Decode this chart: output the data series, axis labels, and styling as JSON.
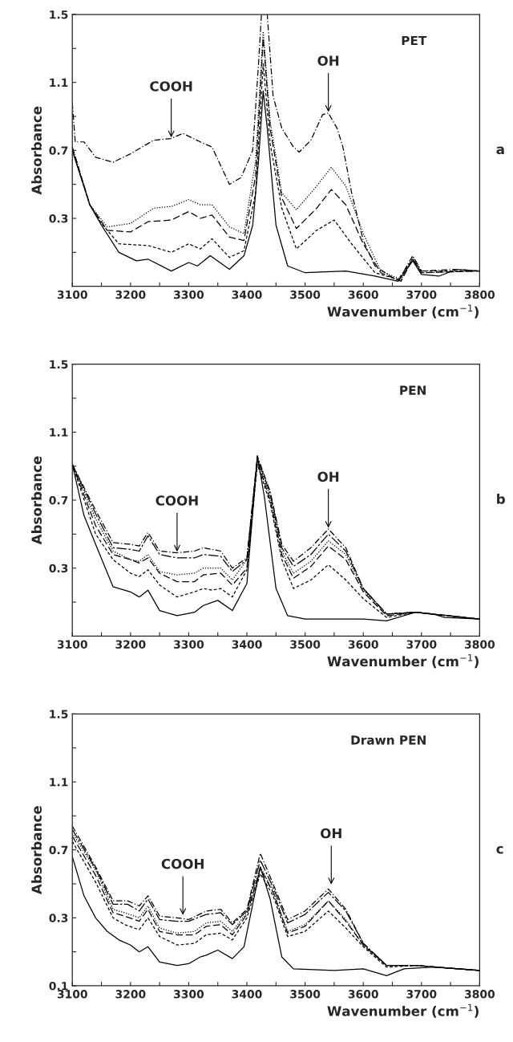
{
  "chart_data": [
    {
      "type": "line",
      "xlabel": "Wavenumber (cm$^{−1}$)",
      "ylabel": "Absorbance",
      "x": [
        3100,
        3130,
        3150,
        3180,
        3210,
        3230,
        3270,
        3300,
        3315,
        3337,
        3370,
        3395,
        3410,
        3420,
        3428,
        3435,
        3450,
        3470,
        3500,
        3570,
        3620,
        3660,
        3685,
        3700,
        3730,
        3760,
        3800
      ],
      "xlim": [
        3100,
        3800
      ],
      "xticks": [
        3100,
        {
          "value": 3150,
          "label": null
        },
        3200,
        {
          "value": 3250,
          "label": null
        },
        3300,
        {
          "value": 3350,
          "label": null
        },
        3400,
        {
          "value": 3450,
          "label": null
        },
        3500,
        {
          "value": 3550,
          "label": null
        },
        3600,
        {
          "value": 3650,
          "label": null
        },
        3700,
        {
          "value": 3750,
          "label": null
        },
        3800
      ],
      "ylim": [
        -0.1,
        1.5
      ],
      "yticks": [
        {
          "value": 0.1,
          "label": null
        },
        0.3,
        {
          "value": 0.5,
          "label": null
        },
        0.7,
        {
          "value": 0.9,
          "label": null
        },
        1.1,
        {
          "value": 1.3,
          "label": null
        },
        1.5
      ],
      "grid": false,
      "legend": false,
      "series": [
        {
          "color": "#000000",
          "line_style": "solid",
          "values": [
            0.7,
            0.38,
            0.26,
            0.1,
            0.05,
            0.06,
            -0.01,
            0.04,
            0.02,
            0.08,
            0.0,
            0.08,
            0.26,
            0.64,
            1.05,
            0.83,
            0.26,
            0.02,
            -0.02,
            -0.01,
            -0.04,
            -0.07,
            0.05,
            -0.03,
            -0.04,
            0.0,
            -0.01
          ]
        },
        {
          "x": [
            3100,
            3130,
            3150,
            3180,
            3230,
            3270,
            3300,
            3320,
            3340,
            3370,
            3395,
            3415,
            3428,
            3440,
            3460,
            3485,
            3520,
            3550,
            3580,
            3620,
            3660,
            3685,
            3700,
            3760,
            3800
          ],
          "color": "#000000",
          "line_style": "dashed",
          "values": [
            0.7,
            0.38,
            0.27,
            0.15,
            0.14,
            0.1,
            0.15,
            0.12,
            0.18,
            0.07,
            0.11,
            0.45,
            1.21,
            0.74,
            0.36,
            0.12,
            0.23,
            0.29,
            0.15,
            -0.02,
            -0.06,
            0.06,
            -0.01,
            -0.01,
            -0.01
          ]
        },
        {
          "x": [
            3100,
            3130,
            3160,
            3200,
            3230,
            3270,
            3300,
            3320,
            3340,
            3370,
            3395,
            3415,
            3428,
            3440,
            3460,
            3485,
            3520,
            3545,
            3570,
            3600,
            3630,
            3665,
            3685,
            3700,
            3800
          ],
          "color": "#000000",
          "line_style": "longdash",
          "values": [
            0.72,
            0.38,
            0.23,
            0.22,
            0.28,
            0.29,
            0.34,
            0.3,
            0.32,
            0.19,
            0.17,
            0.55,
            1.36,
            0.83,
            0.42,
            0.24,
            0.36,
            0.47,
            0.38,
            0.15,
            -0.02,
            -0.07,
            0.06,
            -0.02,
            -0.01
          ]
        },
        {
          "x": [
            3100,
            3130,
            3160,
            3200,
            3240,
            3270,
            3300,
            3320,
            3340,
            3370,
            3395,
            3415,
            3428,
            3440,
            3460,
            3485,
            3520,
            3545,
            3570,
            3600,
            3630,
            3665,
            3685,
            3700,
            3800
          ],
          "color": "#000000",
          "line_style": "dotted",
          "values": [
            0.72,
            0.38,
            0.25,
            0.27,
            0.36,
            0.37,
            0.41,
            0.38,
            0.38,
            0.25,
            0.21,
            0.64,
            1.4,
            0.87,
            0.45,
            0.35,
            0.49,
            0.6,
            0.49,
            0.21,
            -0.01,
            -0.06,
            0.07,
            -0.02,
            -0.01
          ]
        },
        {
          "x": [
            3100,
            3105,
            3120,
            3140,
            3170,
            3200,
            3240,
            3270,
            3290,
            3320,
            3340,
            3370,
            3390,
            3410,
            3420,
            3425,
            3435,
            3445,
            3460,
            3480,
            3490,
            3510,
            3530,
            3540,
            3555,
            3565,
            3580,
            3600,
            3620,
            3660,
            3685,
            3700,
            3760,
            3800
          ],
          "color": "#000000",
          "line_style": "dashdot",
          "values": [
            0.98,
            0.75,
            0.75,
            0.66,
            0.63,
            0.68,
            0.76,
            0.77,
            0.8,
            0.75,
            0.72,
            0.5,
            0.54,
            0.7,
            1.21,
            1.5,
            1.5,
            1.02,
            0.83,
            0.72,
            0.69,
            0.76,
            0.91,
            0.92,
            0.83,
            0.72,
            0.45,
            0.17,
            0.02,
            -0.07,
            0.08,
            -0.01,
            0.0,
            -0.01
          ]
        }
      ],
      "annotations": [
        "PET",
        "a",
        {
          "text": "COOH",
          "x": 3270,
          "y": 0.77
        },
        {
          "text": "OH",
          "x": 3540,
          "y": 0.92
        }
      ]
    },
    {
      "type": "line",
      "xlabel": "Wavenumber (cm$^{−1}$)",
      "ylabel": "Absorbance",
      "x": [
        3100,
        3120,
        3140,
        3170,
        3200,
        3215,
        3230,
        3250,
        3280,
        3310,
        3325,
        3350,
        3375,
        3400,
        3418,
        3430,
        3450,
        3470,
        3500,
        3560,
        3600,
        3640,
        3690,
        3720,
        3740,
        3800
      ],
      "xlim": [
        3100,
        3800
      ],
      "xticks": [
        3100,
        {
          "value": 3150,
          "label": null
        },
        3200,
        {
          "value": 3250,
          "label": null
        },
        3300,
        {
          "value": 3350,
          "label": null
        },
        3400,
        {
          "value": 3450,
          "label": null
        },
        3500,
        {
          "value": 3550,
          "label": null
        },
        3600,
        {
          "value": 3650,
          "label": null
        },
        3700,
        {
          "value": 3750,
          "label": null
        },
        3800
      ],
      "ylim": [
        -0.1,
        1.5
      ],
      "yticks": [
        {
          "value": 0.1,
          "label": null
        },
        0.3,
        {
          "value": 0.5,
          "label": null
        },
        0.7,
        {
          "value": 0.9,
          "label": null
        },
        1.1,
        {
          "value": 1.3,
          "label": null
        },
        1.5
      ],
      "grid": false,
      "legend": false,
      "series": [
        {
          "color": "#000000",
          "line_style": "solid",
          "values": [
            0.91,
            0.61,
            0.44,
            0.19,
            0.16,
            0.13,
            0.17,
            0.05,
            0.02,
            0.04,
            0.08,
            0.11,
            0.05,
            0.21,
            0.96,
            0.72,
            0.18,
            0.02,
            0.0,
            0.0,
            0.0,
            -0.01,
            0.04,
            0.03,
            0.01,
            0.0
          ]
        },
        {
          "x": [
            3100,
            3140,
            3170,
            3200,
            3215,
            3230,
            3250,
            3280,
            3310,
            3325,
            3340,
            3355,
            3375,
            3400,
            3418,
            3440,
            3460,
            3480,
            3510,
            3540,
            3570,
            3600,
            3640,
            3690,
            3720,
            3800
          ],
          "color": "#000000",
          "line_style": "dashed",
          "values": [
            0.91,
            0.5,
            0.35,
            0.27,
            0.25,
            0.29,
            0.2,
            0.13,
            0.16,
            0.18,
            0.17,
            0.18,
            0.13,
            0.29,
            0.91,
            0.68,
            0.35,
            0.18,
            0.23,
            0.32,
            0.23,
            0.12,
            0.01,
            0.04,
            0.03,
            0.0
          ]
        },
        {
          "x": [
            3100,
            3140,
            3170,
            3200,
            3215,
            3230,
            3250,
            3280,
            3310,
            3325,
            3355,
            3375,
            3400,
            3418,
            3440,
            3460,
            3480,
            3510,
            3540,
            3570,
            3600,
            3640,
            3690,
            3800
          ],
          "color": "#000000",
          "line_style": "longdash",
          "values": [
            0.91,
            0.55,
            0.38,
            0.35,
            0.33,
            0.36,
            0.27,
            0.22,
            0.22,
            0.26,
            0.27,
            0.2,
            0.3,
            0.93,
            0.7,
            0.38,
            0.24,
            0.31,
            0.43,
            0.35,
            0.16,
            0.02,
            0.04,
            0.0
          ]
        },
        {
          "x": [
            3100,
            3140,
            3170,
            3200,
            3215,
            3230,
            3250,
            3280,
            3310,
            3325,
            3355,
            3375,
            3400,
            3418,
            3440,
            3460,
            3480,
            3510,
            3540,
            3570,
            3600,
            3640,
            3690,
            3800
          ],
          "color": "#000000",
          "line_style": "dotted",
          "values": [
            0.91,
            0.59,
            0.4,
            0.35,
            0.34,
            0.38,
            0.28,
            0.26,
            0.27,
            0.3,
            0.3,
            0.23,
            0.35,
            0.94,
            0.72,
            0.4,
            0.27,
            0.34,
            0.46,
            0.38,
            0.17,
            0.03,
            0.04,
            0.0
          ]
        },
        {
          "x": [
            3100,
            3140,
            3170,
            3200,
            3215,
            3230,
            3250,
            3280,
            3310,
            3325,
            3355,
            3375,
            3400,
            3418,
            3440,
            3460,
            3480,
            3510,
            3540,
            3570,
            3600,
            3640,
            3690,
            3800
          ],
          "color": "#000000",
          "line_style": "longdashdot",
          "values": [
            0.91,
            0.62,
            0.42,
            0.41,
            0.4,
            0.49,
            0.38,
            0.36,
            0.36,
            0.38,
            0.37,
            0.28,
            0.35,
            0.95,
            0.74,
            0.42,
            0.31,
            0.38,
            0.5,
            0.4,
            0.18,
            0.03,
            0.04,
            0.0
          ]
        },
        {
          "x": [
            3100,
            3140,
            3170,
            3200,
            3215,
            3230,
            3250,
            3280,
            3310,
            3325,
            3355,
            3375,
            3400,
            3418,
            3440,
            3460,
            3480,
            3510,
            3540,
            3570,
            3600,
            3640,
            3690,
            3800
          ],
          "color": "#000000",
          "line_style": "dashdot",
          "values": [
            0.91,
            0.64,
            0.45,
            0.44,
            0.43,
            0.51,
            0.4,
            0.39,
            0.4,
            0.42,
            0.4,
            0.3,
            0.36,
            0.96,
            0.75,
            0.44,
            0.34,
            0.42,
            0.53,
            0.42,
            0.18,
            0.03,
            0.04,
            0.0
          ]
        }
      ],
      "annotations": [
        "PEN",
        "b",
        {
          "text": "COOH",
          "x": 3280,
          "y": 0.39
        },
        {
          "text": "OH",
          "x": 3540,
          "y": 0.53
        }
      ]
    },
    {
      "type": "line",
      "xlabel": "Wavenumber (cm$^{−1}$)",
      "ylabel": "Absorbance",
      "x": [
        3100,
        3120,
        3140,
        3160,
        3180,
        3200,
        3215,
        3230,
        3250,
        3280,
        3300,
        3320,
        3330,
        3350,
        3375,
        3395,
        3410,
        3423,
        3440,
        3460,
        3480,
        3550,
        3600,
        3640,
        3670,
        3720,
        3800
      ],
      "xlim": [
        3100,
        3800
      ],
      "xticks": [
        3100,
        {
          "value": 3150,
          "label": null
        },
        3200,
        {
          "value": 3250,
          "label": null
        },
        3300,
        {
          "value": 3350,
          "label": null
        },
        3400,
        {
          "value": 3450,
          "label": null
        },
        3500,
        {
          "value": 3550,
          "label": null
        },
        3600,
        {
          "value": 3650,
          "label": null
        },
        3700,
        {
          "value": 3750,
          "label": null
        },
        3800
      ],
      "ylim": [
        -0.1,
        1.5
      ],
      "yticks": [
        {
          "value": -0.1,
          "label": "0.1"
        },
        {
          "value": 0.1,
          "label": null
        },
        0.3,
        {
          "value": 0.5,
          "label": null
        },
        0.7,
        {
          "value": 0.9,
          "label": null
        },
        1.1,
        {
          "value": 1.3,
          "label": null
        },
        1.5
      ],
      "grid": false,
      "legend": false,
      "series": [
        {
          "color": "#000000",
          "line_style": "solid",
          "values": [
            0.66,
            0.43,
            0.3,
            0.22,
            0.17,
            0.14,
            0.1,
            0.13,
            0.04,
            0.02,
            0.03,
            0.07,
            0.08,
            0.11,
            0.06,
            0.13,
            0.38,
            0.6,
            0.41,
            0.07,
            0.0,
            -0.01,
            0.0,
            -0.04,
            0.0,
            0.01,
            -0.01
          ]
        },
        {
          "x": [
            3100,
            3140,
            3170,
            3190,
            3215,
            3230,
            3250,
            3280,
            3310,
            3330,
            3355,
            3375,
            3400,
            3423,
            3445,
            3470,
            3500,
            3540,
            3570,
            3600,
            3640,
            3690,
            3800
          ],
          "color": "#000000",
          "line_style": "dashed",
          "values": [
            0.75,
            0.51,
            0.3,
            0.26,
            0.23,
            0.3,
            0.19,
            0.14,
            0.15,
            0.2,
            0.21,
            0.17,
            0.3,
            0.56,
            0.43,
            0.19,
            0.22,
            0.34,
            0.24,
            0.13,
            0.01,
            0.02,
            -0.01
          ]
        },
        {
          "x": [
            3100,
            3140,
            3170,
            3190,
            3215,
            3230,
            3250,
            3280,
            3310,
            3330,
            3355,
            3375,
            3400,
            3423,
            3445,
            3470,
            3500,
            3540,
            3570,
            3600,
            3640,
            3690,
            3800
          ],
          "color": "#000000",
          "line_style": "longdash",
          "values": [
            0.78,
            0.55,
            0.33,
            0.31,
            0.28,
            0.35,
            0.22,
            0.2,
            0.2,
            0.25,
            0.26,
            0.2,
            0.32,
            0.59,
            0.45,
            0.21,
            0.25,
            0.4,
            0.28,
            0.14,
            0.02,
            0.02,
            -0.01
          ]
        },
        {
          "x": [
            3100,
            3140,
            3170,
            3190,
            3215,
            3230,
            3250,
            3280,
            3310,
            3330,
            3355,
            3375,
            3400,
            3423,
            3445,
            3470,
            3500,
            3540,
            3570,
            3600,
            3640,
            3690,
            3800
          ],
          "color": "#000000",
          "line_style": "dotted",
          "values": [
            0.8,
            0.58,
            0.35,
            0.33,
            0.3,
            0.37,
            0.24,
            0.21,
            0.22,
            0.27,
            0.28,
            0.22,
            0.33,
            0.6,
            0.46,
            0.22,
            0.26,
            0.4,
            0.29,
            0.14,
            0.02,
            0.02,
            -0.01
          ]
        },
        {
          "x": [
            3100,
            3140,
            3170,
            3195,
            3215,
            3230,
            3250,
            3280,
            3300,
            3330,
            3355,
            3375,
            3400,
            3423,
            3445,
            3470,
            3500,
            3540,
            3570,
            3600,
            3640,
            3690,
            3800
          ],
          "color": "#000000",
          "line_style": "longdashdot",
          "values": [
            0.82,
            0.59,
            0.38,
            0.38,
            0.34,
            0.41,
            0.29,
            0.28,
            0.28,
            0.32,
            0.33,
            0.26,
            0.34,
            0.64,
            0.48,
            0.27,
            0.32,
            0.45,
            0.34,
            0.15,
            0.02,
            0.02,
            -0.01
          ]
        },
        {
          "x": [
            3100,
            3140,
            3170,
            3195,
            3215,
            3230,
            3250,
            3280,
            3300,
            3330,
            3355,
            3375,
            3400,
            3423,
            3445,
            3470,
            3500,
            3540,
            3570,
            3600,
            3640,
            3690,
            3800
          ],
          "color": "#000000",
          "line_style": "dashdot",
          "values": [
            0.84,
            0.6,
            0.4,
            0.4,
            0.37,
            0.43,
            0.31,
            0.3,
            0.29,
            0.34,
            0.35,
            0.27,
            0.35,
            0.68,
            0.5,
            0.29,
            0.34,
            0.47,
            0.35,
            0.15,
            0.02,
            0.02,
            -0.01
          ]
        }
      ],
      "annotations": [
        "Drawn PEN",
        "c",
        {
          "text": "COOH",
          "x": 3290,
          "y": 0.31
        },
        {
          "text": "OH",
          "x": 3545,
          "y": 0.49
        }
      ]
    }
  ]
}
